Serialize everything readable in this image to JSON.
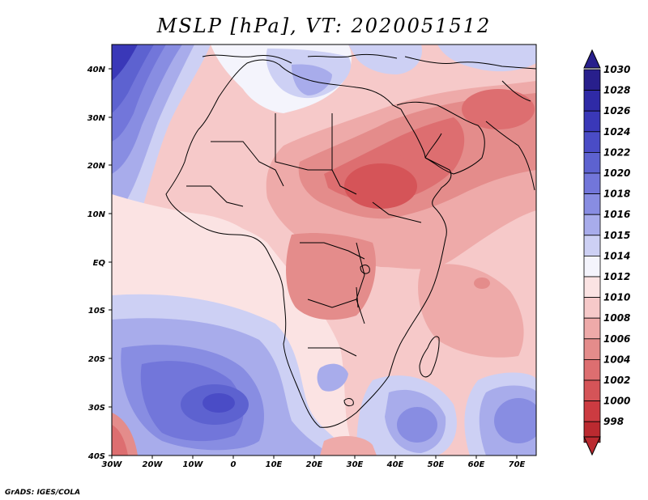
{
  "title": "MSLP [hPa], VT: 2020051512",
  "credit": "GrADS: IGES/COLA",
  "map": {
    "variable": "Mean sea level pressure",
    "units": "hPa",
    "valid_time": "2020051512",
    "lon_range": [
      -30,
      75
    ],
    "lat_range": [
      -40,
      45
    ],
    "lon_ticks": [
      "30W",
      "20W",
      "10W",
      "0",
      "10E",
      "20E",
      "30E",
      "40E",
      "50E",
      "60E",
      "70E"
    ],
    "lat_ticks": [
      "40N",
      "30N",
      "20N",
      "10N",
      "EQ",
      "10S",
      "20S",
      "30S",
      "40S"
    ]
  },
  "colorbar": {
    "labels": [
      "1030",
      "1028",
      "1026",
      "1024",
      "1022",
      "1020",
      "1018",
      "1016",
      "1015",
      "1014",
      "1012",
      "1010",
      "1008",
      "1006",
      "1004",
      "1002",
      "1000",
      "998"
    ],
    "colors": [
      "#281f8c",
      "#2f2aa6",
      "#3a38b8",
      "#4a4cc6",
      "#5d62d0",
      "#7276da",
      "#888de2",
      "#a8aceb",
      "#cdd0f4",
      "#f4f4fc",
      "#fbe3e3",
      "#f6c9c9",
      "#eeaaa9",
      "#e48c8b",
      "#dd6e70",
      "#d55458",
      "#cc3b41",
      "#bb2a30"
    ]
  }
}
